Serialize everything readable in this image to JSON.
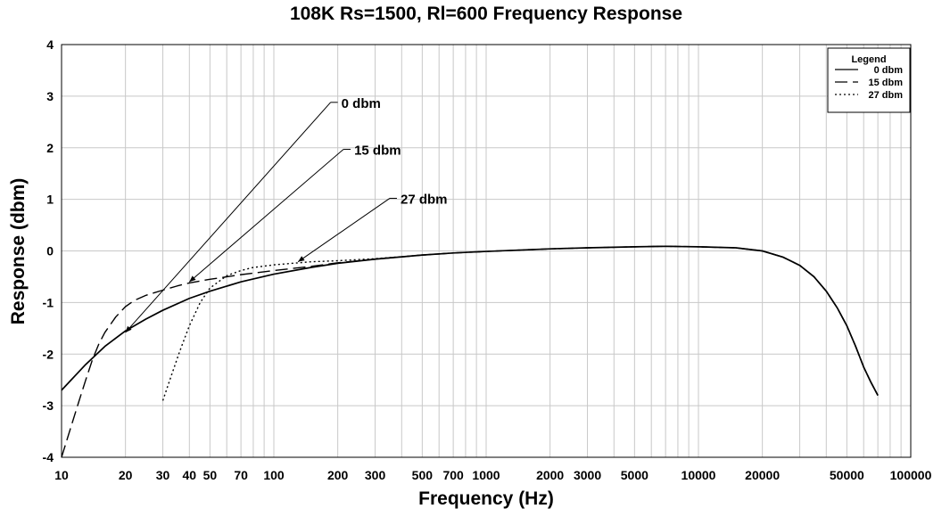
{
  "chart_data": {
    "type": "line",
    "title": "108K Rs=1500, Rl=600 Frequency Response",
    "xlabel": "Frequency (Hz)",
    "ylabel": "Response (dbm)",
    "xscale": "log",
    "xlim": [
      10,
      100000
    ],
    "ylim": [
      -4,
      4
    ],
    "grid": true,
    "x_ticks": [
      10,
      20,
      30,
      40,
      50,
      70,
      100,
      200,
      300,
      500,
      700,
      1000,
      2000,
      3000,
      5000,
      10000,
      20000,
      50000,
      100000
    ],
    "x_tick_labels": [
      "10",
      "20",
      "30",
      "40",
      "50",
      "70",
      "100",
      "200",
      "300",
      "500",
      "700",
      "1000",
      "2000",
      "3000",
      "5000",
      "10000",
      "20000",
      "50000",
      "100000"
    ],
    "y_ticks": [
      -4,
      -3,
      -2,
      -1,
      0,
      1,
      2,
      3,
      4
    ],
    "y_tick_labels": [
      "-4",
      "-3",
      "-2",
      "-1",
      "0",
      "1",
      "2",
      "3",
      "4"
    ],
    "legend": {
      "title": "Legend",
      "position": "top-right",
      "entries": [
        "0 dbm",
        "15 dbm",
        "27 dbm"
      ]
    },
    "series": [
      {
        "name": "0 dbm",
        "style": "solid",
        "x": [
          10,
          13,
          16,
          20,
          25,
          30,
          40,
          50,
          70,
          100,
          150,
          200,
          300,
          500,
          700,
          1000,
          2000,
          3000,
          5000,
          7000,
          10000,
          15000,
          20000,
          25000,
          30000,
          35000,
          40000,
          45000,
          50000,
          55000,
          60000,
          65000,
          70000
        ],
        "y": [
          -2.7,
          -2.2,
          -1.85,
          -1.55,
          -1.32,
          -1.15,
          -0.92,
          -0.78,
          -0.6,
          -0.45,
          -0.32,
          -0.24,
          -0.16,
          -0.08,
          -0.04,
          -0.01,
          0.04,
          0.06,
          0.08,
          0.09,
          0.08,
          0.06,
          0.0,
          -0.12,
          -0.28,
          -0.5,
          -0.78,
          -1.1,
          -1.45,
          -1.85,
          -2.25,
          -2.55,
          -2.8
        ]
      },
      {
        "name": "15 dbm",
        "style": "dashed",
        "x": [
          10,
          11,
          12,
          13,
          14,
          15,
          16,
          18,
          20,
          22,
          25,
          30,
          35,
          40,
          50,
          70,
          100,
          150,
          200,
          300,
          500,
          700,
          1000,
          2000,
          3000,
          5000,
          7000,
          10000,
          15000,
          20000,
          25000,
          30000,
          35000,
          40000,
          45000,
          50000,
          55000,
          60000,
          65000,
          70000
        ],
        "y": [
          -4.0,
          -3.45,
          -2.95,
          -2.5,
          -2.1,
          -1.8,
          -1.58,
          -1.28,
          -1.08,
          -0.96,
          -0.86,
          -0.76,
          -0.68,
          -0.62,
          -0.55,
          -0.46,
          -0.38,
          -0.3,
          -0.23,
          -0.16,
          -0.08,
          -0.04,
          -0.01,
          0.04,
          0.06,
          0.08,
          0.09,
          0.08,
          0.06,
          0.0,
          -0.12,
          -0.28,
          -0.5,
          -0.78,
          -1.1,
          -1.45,
          -1.85,
          -2.25,
          -2.55,
          -2.8
        ]
      },
      {
        "name": "27 dbm",
        "style": "dotted",
        "x": [
          30,
          33,
          36,
          40,
          45,
          50,
          60,
          70,
          80,
          100,
          150,
          200,
          300,
          500,
          700,
          1000,
          2000,
          3000,
          5000,
          7000,
          10000,
          15000,
          20000,
          25000,
          30000,
          35000,
          40000,
          45000,
          50000,
          55000,
          60000,
          65000,
          70000
        ],
        "y": [
          -2.9,
          -2.4,
          -1.95,
          -1.45,
          -1.0,
          -0.72,
          -0.48,
          -0.38,
          -0.32,
          -0.27,
          -0.21,
          -0.19,
          -0.15,
          -0.08,
          -0.04,
          -0.01,
          0.04,
          0.06,
          0.08,
          0.09,
          0.08,
          0.06,
          0.0,
          -0.12,
          -0.28,
          -0.5,
          -0.78,
          -1.1,
          -1.45,
          -1.85,
          -2.25,
          -2.55,
          -2.8
        ]
      }
    ],
    "annotations": [
      {
        "text": "0 dbm",
        "label_at": [
          200,
          2.88
        ],
        "arrow_to": [
          20,
          -1.58
        ]
      },
      {
        "text": "15 dbm",
        "label_at": [
          230,
          1.97
        ],
        "arrow_to": [
          40,
          -0.6
        ]
      },
      {
        "text": "27 dbm",
        "label_at": [
          380,
          1.02
        ],
        "arrow_to": [
          130,
          -0.21
        ]
      }
    ]
  }
}
